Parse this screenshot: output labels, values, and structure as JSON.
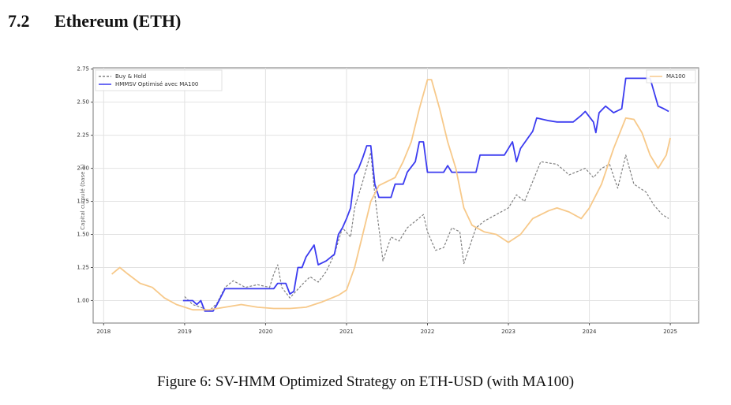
{
  "header": {
    "number": "7.2",
    "title": "Ethereum (ETH)"
  },
  "chart_data": {
    "type": "line",
    "ylabel": "Capital cumulé (base 1)",
    "xlim": [
      2017.87,
      2025.35
    ],
    "xticks": [
      2018,
      2019,
      2020,
      2021,
      2022,
      2023,
      2024,
      2025
    ],
    "ylim": [
      0.83,
      2.76
    ],
    "yticks": [
      {
        "value": 1,
        "label": "1.00"
      },
      {
        "value": 1.25,
        "label": "1.25"
      },
      {
        "value": 1.5,
        "label": "1.50"
      },
      {
        "value": 1.75,
        "label": "1.75"
      },
      {
        "value": 2,
        "label": "2.00"
      },
      {
        "value": 2.25,
        "label": "2.25"
      },
      {
        "value": 2.5,
        "label": "2.50"
      },
      {
        "value": 2.75,
        "label": "2.75"
      }
    ],
    "grid": true,
    "series": [
      {
        "name": "Buy & Hold",
        "color": "#808080",
        "dashed": true,
        "legend_loc": "upper left",
        "x": [
          2019.0,
          2019.1,
          2019.2,
          2019.3,
          2019.4,
          2019.5,
          2019.6,
          2019.75,
          2019.9,
          2020.05,
          2020.1,
          2020.15,
          2020.2,
          2020.3,
          2020.45,
          2020.55,
          2020.65,
          2020.75,
          2020.85,
          2020.95,
          2021.05,
          2021.1,
          2021.2,
          2021.3,
          2021.35,
          2021.45,
          2021.55,
          2021.65,
          2021.75,
          2021.85,
          2021.95,
          2022.0,
          2022.1,
          2022.2,
          2022.3,
          2022.4,
          2022.45,
          2022.6,
          2022.7,
          2022.85,
          2023.0,
          2023.1,
          2023.2,
          2023.3,
          2023.4,
          2023.6,
          2023.75,
          2023.95,
          2024.05,
          2024.15,
          2024.25,
          2024.35,
          2024.45,
          2024.55,
          2024.7,
          2024.8,
          2024.9,
          2024.98
        ],
        "values": [
          1.03,
          0.97,
          0.95,
          0.92,
          0.98,
          1.1,
          1.15,
          1.1,
          1.12,
          1.1,
          1.2,
          1.27,
          1.1,
          1.02,
          1.12,
          1.18,
          1.14,
          1.22,
          1.35,
          1.55,
          1.48,
          1.7,
          1.9,
          2.12,
          1.8,
          1.3,
          1.48,
          1.45,
          1.55,
          1.6,
          1.65,
          1.52,
          1.38,
          1.4,
          1.55,
          1.52,
          1.28,
          1.55,
          1.6,
          1.65,
          1.7,
          1.8,
          1.75,
          1.9,
          2.05,
          2.03,
          1.95,
          2.0,
          1.93,
          2.0,
          2.03,
          1.85,
          2.1,
          1.88,
          1.82,
          1.72,
          1.65,
          1.62
        ]
      },
      {
        "name": "HMMSV Optimisé avec MA100",
        "color": "#3b3bf0",
        "dashed": false,
        "legend_loc": "upper left",
        "x": [
          2018.98,
          2019.1,
          2019.15,
          2019.2,
          2019.25,
          2019.35,
          2019.4,
          2019.5,
          2019.7,
          2020.0,
          2020.1,
          2020.15,
          2020.25,
          2020.3,
          2020.35,
          2020.4,
          2020.45,
          2020.5,
          2020.6,
          2020.65,
          2020.75,
          2020.85,
          2020.9,
          2020.95,
          2021.0,
          2021.05,
          2021.1,
          2021.15,
          2021.2,
          2021.25,
          2021.3,
          2021.35,
          2021.4,
          2021.55,
          2021.6,
          2021.7,
          2021.75,
          2021.85,
          2021.9,
          2021.95,
          2022.0,
          2022.2,
          2022.25,
          2022.3,
          2022.6,
          2022.65,
          2022.95,
          2023.05,
          2023.1,
          2023.15,
          2023.3,
          2023.35,
          2023.5,
          2023.6,
          2023.8,
          2023.9,
          2023.95,
          2024.05,
          2024.08,
          2024.12,
          2024.2,
          2024.3,
          2024.4,
          2024.45,
          2024.75,
          2024.85,
          2024.92,
          2024.98
        ],
        "values": [
          1.0,
          1.0,
          0.97,
          1.0,
          0.92,
          0.92,
          0.97,
          1.09,
          1.09,
          1.09,
          1.09,
          1.13,
          1.13,
          1.05,
          1.07,
          1.25,
          1.25,
          1.33,
          1.42,
          1.27,
          1.3,
          1.35,
          1.5,
          1.55,
          1.62,
          1.7,
          1.95,
          2.0,
          2.08,
          2.17,
          2.17,
          1.88,
          1.78,
          1.78,
          1.88,
          1.88,
          1.97,
          2.05,
          2.2,
          2.2,
          1.97,
          1.97,
          2.02,
          1.97,
          1.97,
          2.1,
          2.1,
          2.2,
          2.05,
          2.15,
          2.28,
          2.38,
          2.36,
          2.35,
          2.35,
          2.4,
          2.43,
          2.35,
          2.27,
          2.42,
          2.47,
          2.42,
          2.45,
          2.68,
          2.68,
          2.47,
          2.45,
          2.43
        ]
      },
      {
        "name": "MA100",
        "color": "#f7c98a",
        "dashed": false,
        "legend_loc": "upper right",
        "x": [
          2018.1,
          2018.2,
          2018.3,
          2018.45,
          2018.6,
          2018.75,
          2018.9,
          2019.1,
          2019.3,
          2019.5,
          2019.7,
          2019.9,
          2020.1,
          2020.3,
          2020.5,
          2020.7,
          2020.9,
          2021.0,
          2021.1,
          2021.2,
          2021.3,
          2021.4,
          2021.5,
          2021.6,
          2021.7,
          2021.8,
          2021.9,
          2022.0,
          2022.05,
          2022.15,
          2022.25,
          2022.35,
          2022.45,
          2022.55,
          2022.7,
          2022.85,
          2023.0,
          2023.15,
          2023.3,
          2023.5,
          2023.6,
          2023.75,
          2023.9,
          2024.0,
          2024.15,
          2024.3,
          2024.45,
          2024.55,
          2024.65,
          2024.75,
          2024.85,
          2024.95,
          2025.0
        ],
        "values": [
          1.2,
          1.25,
          1.2,
          1.13,
          1.1,
          1.02,
          0.97,
          0.93,
          0.93,
          0.95,
          0.97,
          0.95,
          0.94,
          0.94,
          0.95,
          0.99,
          1.04,
          1.08,
          1.25,
          1.5,
          1.75,
          1.87,
          1.9,
          1.93,
          2.05,
          2.2,
          2.45,
          2.67,
          2.67,
          2.45,
          2.2,
          2.0,
          1.7,
          1.57,
          1.52,
          1.5,
          1.44,
          1.5,
          1.62,
          1.68,
          1.7,
          1.67,
          1.62,
          1.7,
          1.88,
          2.15,
          2.38,
          2.37,
          2.27,
          2.1,
          2.0,
          2.1,
          2.23
        ]
      }
    ]
  },
  "caption": "Figure 6: SV-HMM Optimized Strategy on ETH-USD (with MA100)"
}
